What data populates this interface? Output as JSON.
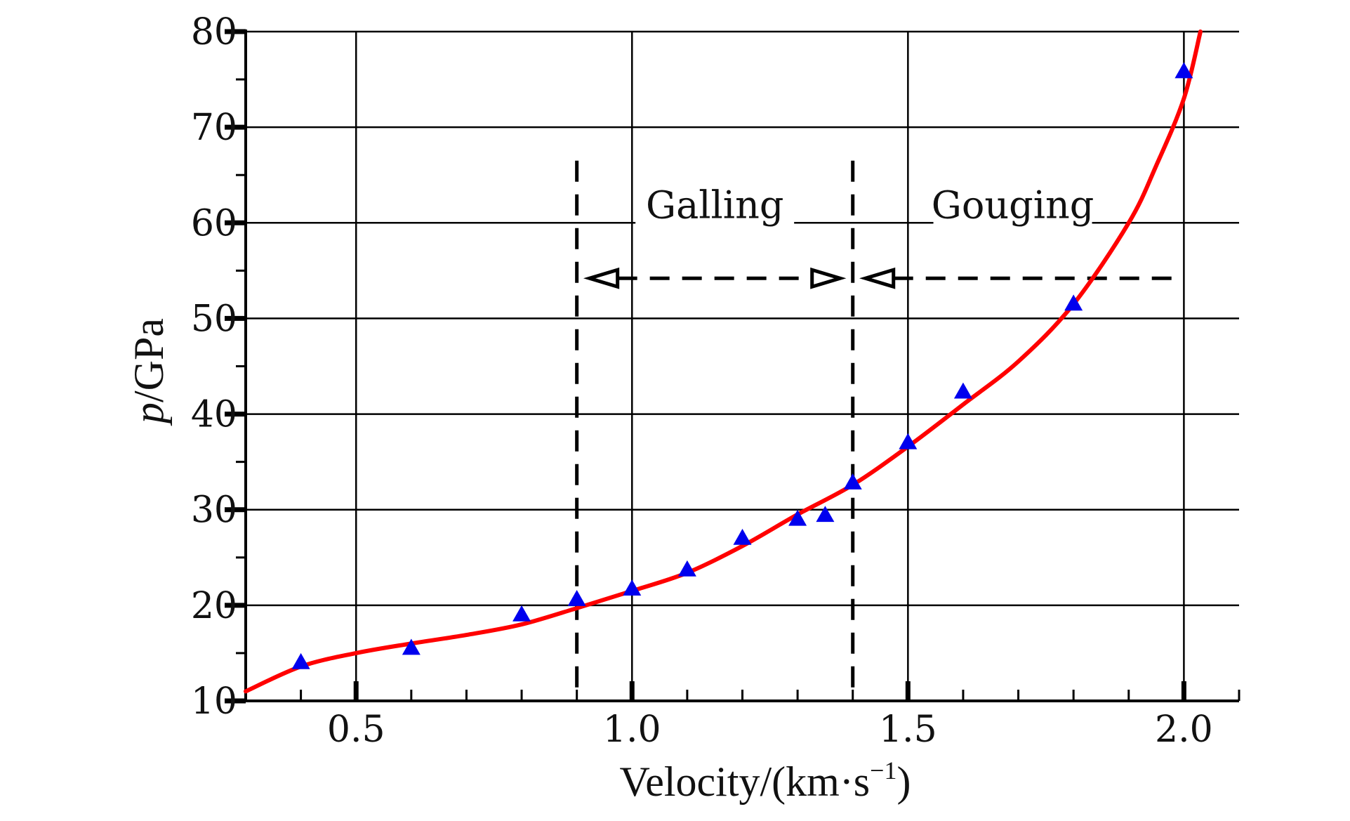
{
  "chart_data": {
    "type": "scatter",
    "title": "",
    "xlabel": "Velocity/(km·s",
    "xlabel_sup": "−1",
    "xlabel_end": ")",
    "ylabel_italic": "p",
    "ylabel_rest": "/GPa",
    "xlim": [
      0.3,
      2.1
    ],
    "ylim": [
      10,
      80
    ],
    "x_ticks": [
      0.5,
      1.0,
      1.5,
      2.0
    ],
    "x_tick_labels": [
      "0.5",
      "1.0",
      "1.5",
      "2.0"
    ],
    "y_ticks": [
      10,
      20,
      30,
      40,
      50,
      60,
      70,
      80
    ],
    "y_tick_labels": [
      "10",
      "20",
      "30",
      "40",
      "50",
      "60",
      "70",
      "80"
    ],
    "grid": true,
    "series": [
      {
        "kind": "scatter",
        "marker": "triangle",
        "color": "#0000ee",
        "x": [
          0.4,
          0.6,
          0.8,
          0.9,
          1.0,
          1.1,
          1.2,
          1.3,
          1.35,
          1.4,
          1.5,
          1.6,
          1.8,
          2.0
        ],
        "y": [
          14.0,
          15.5,
          19.0,
          20.6,
          21.7,
          23.7,
          27.0,
          29.0,
          29.4,
          32.8,
          37.0,
          42.3,
          51.5,
          75.8
        ]
      },
      {
        "kind": "line",
        "color": "#ff0000",
        "x": [
          0.3,
          0.4,
          0.5,
          0.6,
          0.7,
          0.8,
          0.9,
          1.0,
          1.1,
          1.2,
          1.3,
          1.4,
          1.5,
          1.6,
          1.7,
          1.8,
          1.9,
          1.95,
          2.0,
          2.03
        ],
        "y": [
          11.0,
          13.6,
          15.0,
          16.0,
          16.9,
          18.0,
          19.7,
          21.5,
          23.4,
          26.2,
          29.5,
          32.6,
          36.6,
          41.0,
          45.5,
          51.5,
          60.0,
          66.0,
          73.0,
          80.0
        ]
      }
    ],
    "regions": [
      {
        "label": "Galling",
        "x_start": 0.9,
        "x_end": 1.4
      },
      {
        "label": "Gouging",
        "x_start": 1.4,
        "x_end": 2.0
      }
    ],
    "boundary_lines": [
      0.9,
      1.4
    ],
    "region_arrow_y": 54.2,
    "region_label_y": 60.5
  }
}
